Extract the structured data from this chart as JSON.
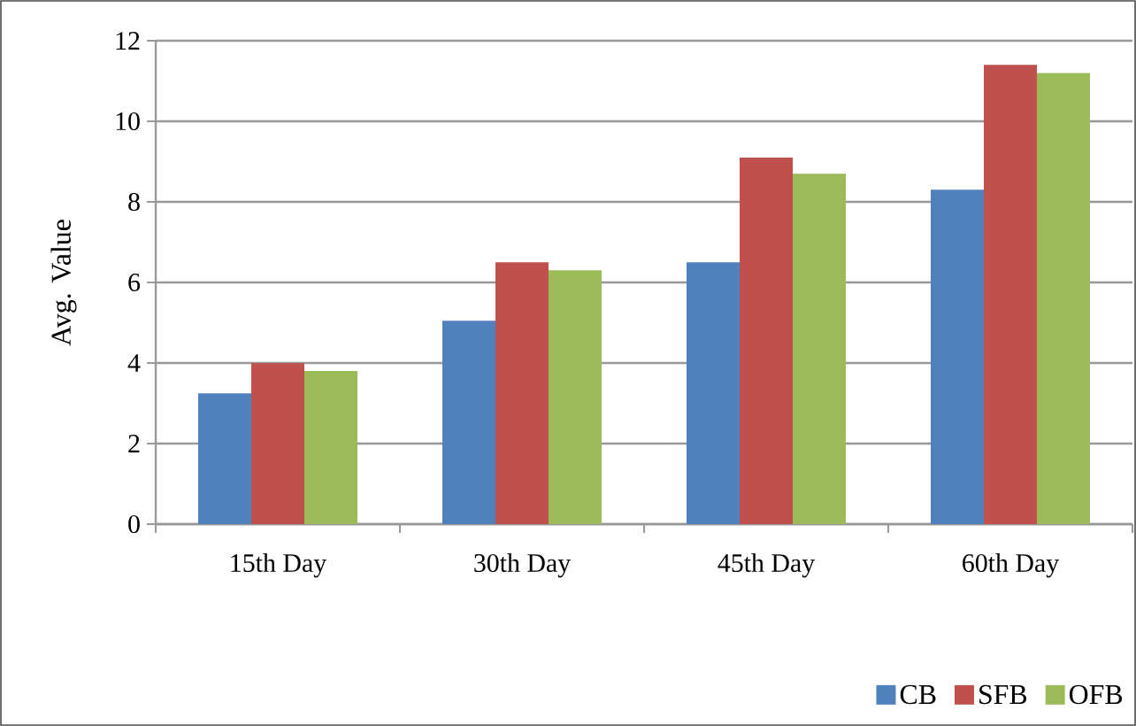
{
  "chart_data": {
    "type": "bar",
    "ylabel": "Avg. Value",
    "categories": [
      "15th Day",
      "30th Day",
      "45th Day",
      "60th Day"
    ],
    "series": [
      {
        "name": "CB",
        "color": "#4f81bd",
        "values": [
          3.25,
          5.05,
          6.5,
          8.3
        ]
      },
      {
        "name": "SFB",
        "color": "#c0504d",
        "values": [
          4.0,
          6.5,
          9.1,
          11.4
        ]
      },
      {
        "name": "OFB",
        "color": "#9bbb59",
        "values": [
          3.8,
          6.3,
          8.7,
          11.2
        ]
      }
    ],
    "ylim": [
      0,
      12
    ],
    "yticks": [
      0,
      2,
      4,
      6,
      8,
      10,
      12
    ],
    "grid": "y",
    "legend": "bottom right"
  }
}
